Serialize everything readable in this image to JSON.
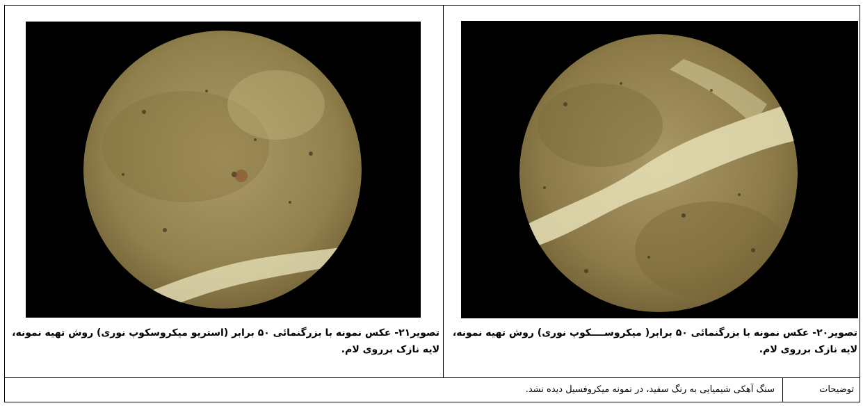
{
  "figures": {
    "fig20": {
      "caption": "تصویر۲۰- عکس نمونه با بزرگنمائی ۵۰ برابر( میکروســــکوپ نوری) روش تهیه نمونه، لایه نازک برروی لام."
    },
    "fig21": {
      "caption": "تصویر۲۱- عکس نمونه با بزرگنمائی ۵۰ برابر (استریو میکروسکوپ نوری) روش تهیه نمونه، لایه نازک برروی لام."
    }
  },
  "description": {
    "label": "توضیحات",
    "text": "سنگ آهکی شیمیایی به رنگ سفید، در نمونه میکروفسیل دیده نشد."
  },
  "colors": {
    "background_black": "#000000",
    "sample_brown": "#9c8a58",
    "vein_pale": "#e6dfb6"
  }
}
